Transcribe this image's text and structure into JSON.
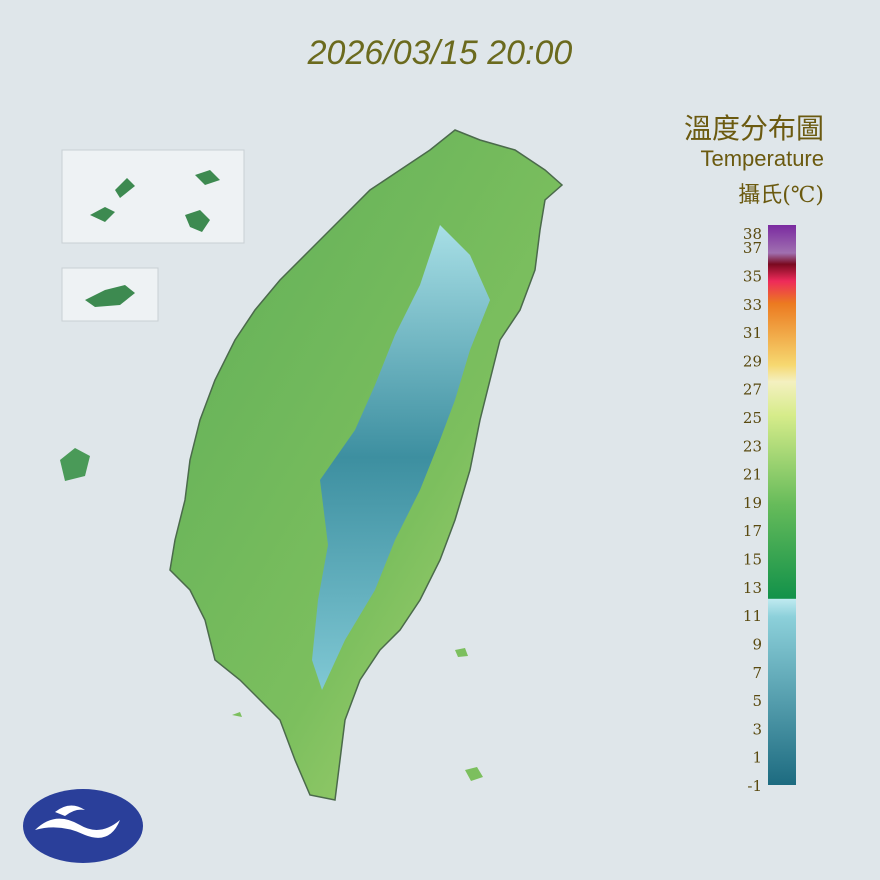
{
  "timestamp": "2026/03/15 20:00",
  "legend": {
    "title": "溫度分布圖",
    "subtitle": "Temperature",
    "unit": "攝氏(℃)",
    "ticks": [
      38,
      37,
      35,
      33,
      31,
      29,
      27,
      25,
      23,
      21,
      19,
      17,
      15,
      13,
      11,
      9,
      7,
      5,
      3,
      1,
      -1
    ]
  }
}
